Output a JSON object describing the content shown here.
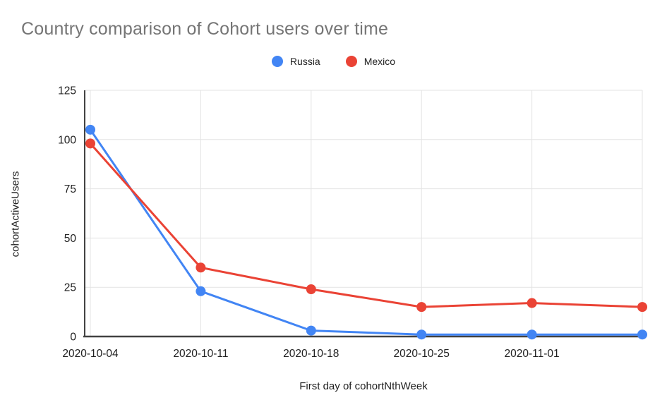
{
  "chart_data": {
    "type": "line",
    "title": "Country comparison of Cohort users over time",
    "xlabel": "First day of cohortNthWeek",
    "ylabel": "cohortActiveUsers",
    "x_tick_labels": [
      "2020-10-04",
      "2020-10-11",
      "2020-10-18",
      "2020-10-25",
      "2020-11-01"
    ],
    "num_points": 6,
    "ylim": [
      0,
      125
    ],
    "y_ticks": [
      0,
      25,
      50,
      75,
      100,
      125
    ],
    "grid": true,
    "legend_position": "top-center",
    "series": [
      {
        "name": "Russia",
        "color": "#4285F4",
        "values": [
          105,
          23,
          3,
          1,
          1,
          1
        ]
      },
      {
        "name": "Mexico",
        "color": "#EA4335",
        "values": [
          98,
          35,
          24,
          15,
          17,
          15
        ]
      }
    ]
  },
  "style_colors": {
    "title_text": "#757575",
    "axis_text": "#212121",
    "gridline": "#e3e3e3",
    "axis_line": "#424242"
  }
}
